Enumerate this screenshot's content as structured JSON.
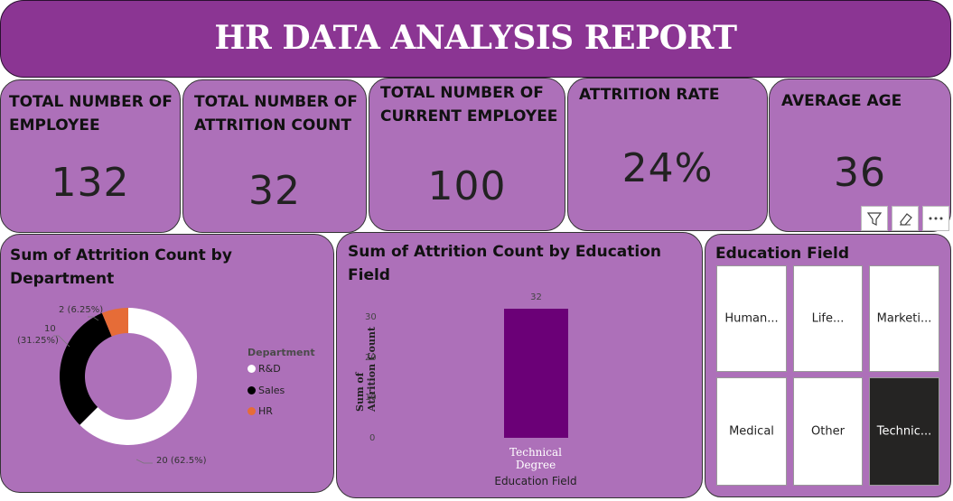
{
  "header": {
    "title": "HR DATA ANALYSIS REPORT"
  },
  "kpis": [
    {
      "label": "TOTAL NUMBER OF EMPLOYEE",
      "value": "132"
    },
    {
      "label": "TOTAL NUMBER OF ATTRITION COUNT",
      "value": "32"
    },
    {
      "label": "TOTAL NUMBER OF CURRENT EMPLOYEE",
      "value": "100"
    },
    {
      "label": "ATTRITION RATE",
      "value": "24%"
    },
    {
      "label": "AVERAGE AGE",
      "value": "36"
    }
  ],
  "colors": {
    "header_bg": "#8B3593",
    "card_bg": "#AD70B9",
    "bar": "#6B0077",
    "rnd": "#ffffff",
    "sales": "#000000",
    "hr": "#E66C37"
  },
  "visual_toolbar": {
    "icons": [
      "filter-icon",
      "eraser-icon",
      "more-options-icon"
    ]
  },
  "donut": {
    "title": "Sum of Attrition Count by Department",
    "legend_title": "Department",
    "slices": [
      {
        "name": "R&D",
        "value": 20,
        "label": "20 (62.5%)"
      },
      {
        "name": "Sales",
        "value": 10,
        "label_line1": "10",
        "label_line2": "(31.25%)"
      },
      {
        "name": "HR",
        "value": 2,
        "label": "2 (6.25%)"
      }
    ]
  },
  "bar_chart": {
    "title": "Sum of Attrition Count by Education Field",
    "ylabel": "Sum of Attrition Count",
    "xlabel": "Education Field",
    "ticks": [
      "0",
      "10",
      "20",
      "30"
    ],
    "ylim": [
      0,
      32
    ],
    "category_line1": "Technical",
    "category_line2": "Degree",
    "value": 32,
    "value_label": "32"
  },
  "chart_data": {
    "type": "bar",
    "categories": [
      "Technical Degree"
    ],
    "values": [
      32
    ],
    "title": "Sum of Attrition Count by Education Field",
    "xlabel": "Education Field",
    "ylabel": "Sum of Attrition Count",
    "ylim": [
      0,
      32
    ]
  },
  "slicer": {
    "title": "Education Field",
    "items": [
      {
        "label": "Human...",
        "selected": false
      },
      {
        "label": "Life...",
        "selected": false
      },
      {
        "label": "Marketi...",
        "selected": false
      },
      {
        "label": "Medical",
        "selected": false
      },
      {
        "label": "Other",
        "selected": false
      },
      {
        "label": "Technic...",
        "selected": true
      }
    ]
  }
}
